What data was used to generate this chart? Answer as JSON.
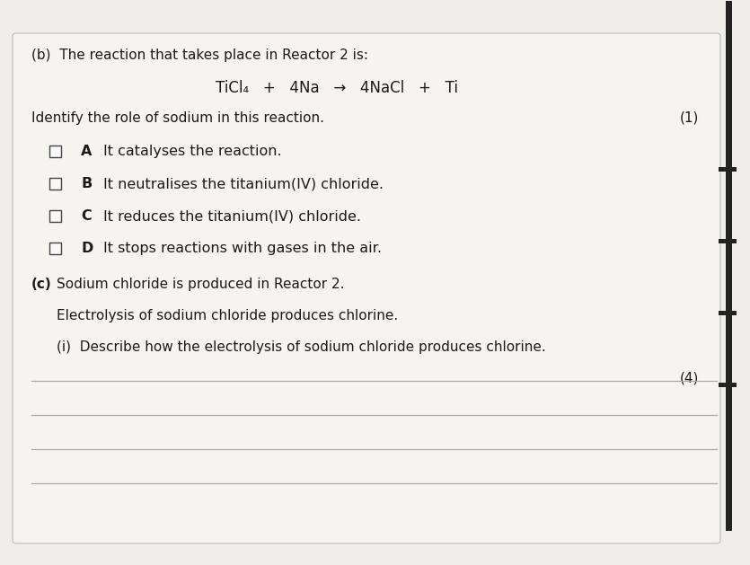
{
  "bg_color": "#e8e6e2",
  "paper_color": "#f0eeeb",
  "card_color": "#ebebea",
  "line_color": "#aaaaaa",
  "text_color": "#1a1a1a",
  "title_b": "(b)  The reaction that takes place in Reactor 2 is:",
  "equation": "TiCl₄   +   4Na   →   4NaCl   +   Ti",
  "identify": "Identify the role of sodium in this reaction.",
  "mark1": "(1)",
  "options": [
    {
      "letter": "A",
      "text": "It catalyses the reaction."
    },
    {
      "letter": "B",
      "text": "It neutralises the titanium(IV) chloride."
    },
    {
      "letter": "C",
      "text": "It reduces the titanium(IV) chloride."
    },
    {
      "letter": "D",
      "text": "It stops reactions with gases in the air."
    }
  ],
  "part_c_intro": "(c)  Sodium chloride is produced in Reactor 2.",
  "part_c_line2": "Electrolysis of sodium chloride produces chlorine.",
  "part_c_i": "(i)  Describe how the electrolysis of sodium chloride produces chlorine.",
  "mark2": "(4)",
  "right_bar_color": "#222222",
  "tick_color": "#222222"
}
